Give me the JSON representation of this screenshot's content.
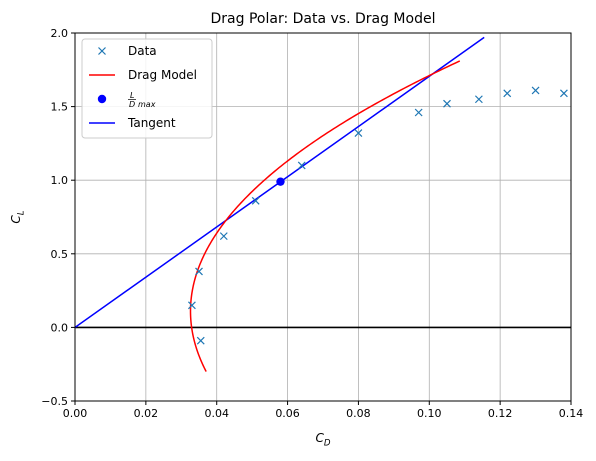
{
  "chart_data": {
    "type": "line",
    "title": "Drag Polar: Data vs. Drag Model",
    "xlabel": "C_D",
    "ylabel": "C_L",
    "xlim": [
      0.0,
      0.14
    ],
    "ylim": [
      -0.5,
      2.0
    ],
    "x_ticks": [
      0.0,
      0.02,
      0.04,
      0.06,
      0.08,
      0.1,
      0.12,
      0.14
    ],
    "x_tick_labels": [
      "0.00",
      "0.02",
      "0.04",
      "0.06",
      "0.08",
      "0.10",
      "0.12",
      "0.14"
    ],
    "y_ticks": [
      -0.5,
      0.0,
      0.5,
      1.0,
      1.5,
      2.0
    ],
    "y_tick_labels": [
      "−0.5",
      "0.0",
      "0.5",
      "1.0",
      "1.5",
      "2.0"
    ],
    "grid": true,
    "legend_position": "top-left",
    "legend": [
      {
        "label": "Data",
        "marker": "x",
        "color": "#1f77b4"
      },
      {
        "label": "Drag Model",
        "marker": "line",
        "color": "#ff0000"
      },
      {
        "label": "L/D max",
        "marker": "dot",
        "color": "#0000ff"
      },
      {
        "label": "Tangent",
        "marker": "line",
        "color": "#0000ff"
      }
    ],
    "series": [
      {
        "name": "Data",
        "style": "x-markers",
        "color": "#1f77b4",
        "points": [
          {
            "x": 0.0355,
            "y": -0.09
          },
          {
            "x": 0.033,
            "y": 0.15
          },
          {
            "x": 0.035,
            "y": 0.38
          },
          {
            "x": 0.042,
            "y": 0.62
          },
          {
            "x": 0.051,
            "y": 0.86
          },
          {
            "x": 0.064,
            "y": 1.1
          },
          {
            "x": 0.08,
            "y": 1.32
          },
          {
            "x": 0.097,
            "y": 1.46
          },
          {
            "x": 0.105,
            "y": 1.52
          },
          {
            "x": 0.114,
            "y": 1.55
          },
          {
            "x": 0.122,
            "y": 1.59
          },
          {
            "x": 0.13,
            "y": 1.61
          },
          {
            "x": 0.138,
            "y": 1.59
          }
        ]
      },
      {
        "name": "Drag Model",
        "style": "line",
        "color": "#ff0000",
        "cd0": 0.0326,
        "k": 0.0263,
        "cl_at_min_drag": 0.11,
        "cl_range": [
          -0.3,
          1.81
        ]
      },
      {
        "name": "L/D max",
        "style": "dot",
        "color": "#0000ff",
        "points": [
          {
            "x": 0.058,
            "y": 0.99
          }
        ]
      },
      {
        "name": "Tangent",
        "style": "line",
        "color": "#0000ff",
        "points": [
          {
            "x": 0.0,
            "y": 0.0
          },
          {
            "x": 0.1155,
            "y": 1.97
          }
        ]
      }
    ],
    "reference_lines": [
      {
        "axis": "y",
        "value": 0.0,
        "color": "#000000"
      }
    ]
  }
}
